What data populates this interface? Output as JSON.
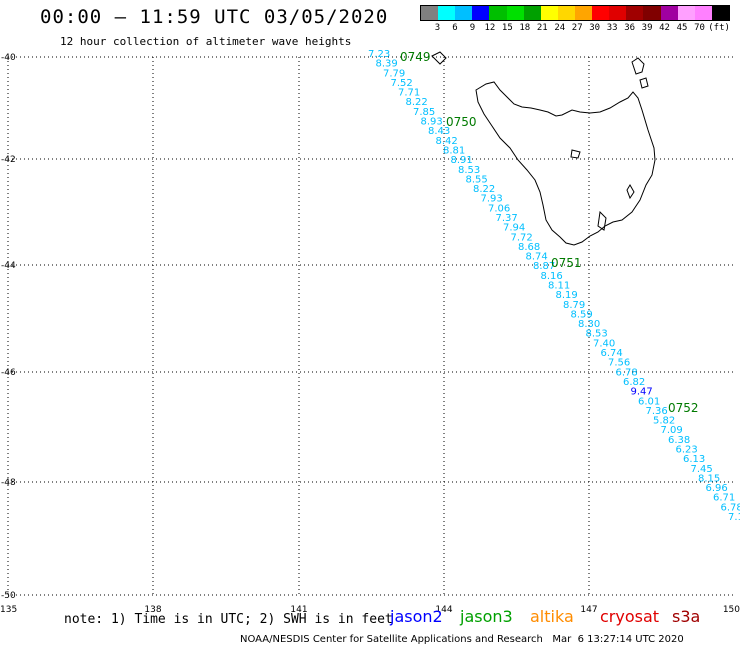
{
  "header": {
    "title": "00:00 – 11:59 UTC 03/05/2020",
    "subtitle": "12 hour collection of altimeter wave heights"
  },
  "colorbar": {
    "colors": [
      "#808080",
      "#00ffff",
      "#00bfff",
      "#0000ff",
      "#00bf00",
      "#00e000",
      "#00a000",
      "#ffff00",
      "#ffd700",
      "#ffa500",
      "#ff0000",
      "#e00000",
      "#a00000",
      "#800000",
      "#a000a0",
      "#ffa0ff",
      "#ff80ff",
      "#000000"
    ],
    "labels": [
      "3",
      "6",
      "9",
      "12",
      "15",
      "18",
      "21",
      "24",
      "27",
      "30",
      "33",
      "36",
      "39",
      "42",
      "45",
      "70",
      "(ft)"
    ]
  },
  "map": {
    "lat_labels": [
      "-40",
      "-42",
      "-44",
      "-46",
      "-48",
      "-50"
    ],
    "lon_labels": [
      "135",
      "138",
      "141",
      "144",
      "147",
      "150"
    ],
    "time_labels": [
      "0749",
      "0750",
      "0751",
      "0752"
    ],
    "swh_values": [
      "7.23",
      "8.39",
      "7.79",
      "7.52",
      "7.71",
      "8.22",
      "7.85",
      "8.93",
      "8.43",
      "8.42",
      "8.81",
      "8.91",
      "8.53",
      "8.55",
      "8.22",
      "7.93",
      "7.06",
      "7.37",
      "7.94",
      "7.72",
      "8.68",
      "8.74",
      "8.87",
      "8.16",
      "8.11",
      "8.19",
      "8.79",
      "8.59",
      "8.30",
      "8.53",
      "7.40",
      "6.74",
      "7.56",
      "6.78",
      "6.82",
      "9.47",
      "6.01",
      "7.36",
      "5.82",
      "7.09",
      "6.38",
      "6.23",
      "6.13",
      "7.45",
      "8.15",
      "6.96",
      "6.71",
      "6.78",
      "7.1"
    ],
    "highlight_value": "9.47",
    "colors": {
      "track": "#00bfff",
      "time": "#007a00",
      "highlight": "#0000ff"
    }
  },
  "note": "note: 1) Time is in UTC; 2) SWH is in feet",
  "legend": [
    {
      "label": "jason2",
      "color": "#0000ff"
    },
    {
      "label": "jason3",
      "color": "#00a000"
    },
    {
      "label": "altika",
      "color": "#ff8c00"
    },
    {
      "label": "cryosat",
      "color": "#e00000"
    },
    {
      "label": "s3a",
      "color": "#a00000"
    }
  ],
  "credit": "NOAA/NESDIS Center for Satellite Applications and Research   Mar  6 13:27:14 UTC 2020"
}
